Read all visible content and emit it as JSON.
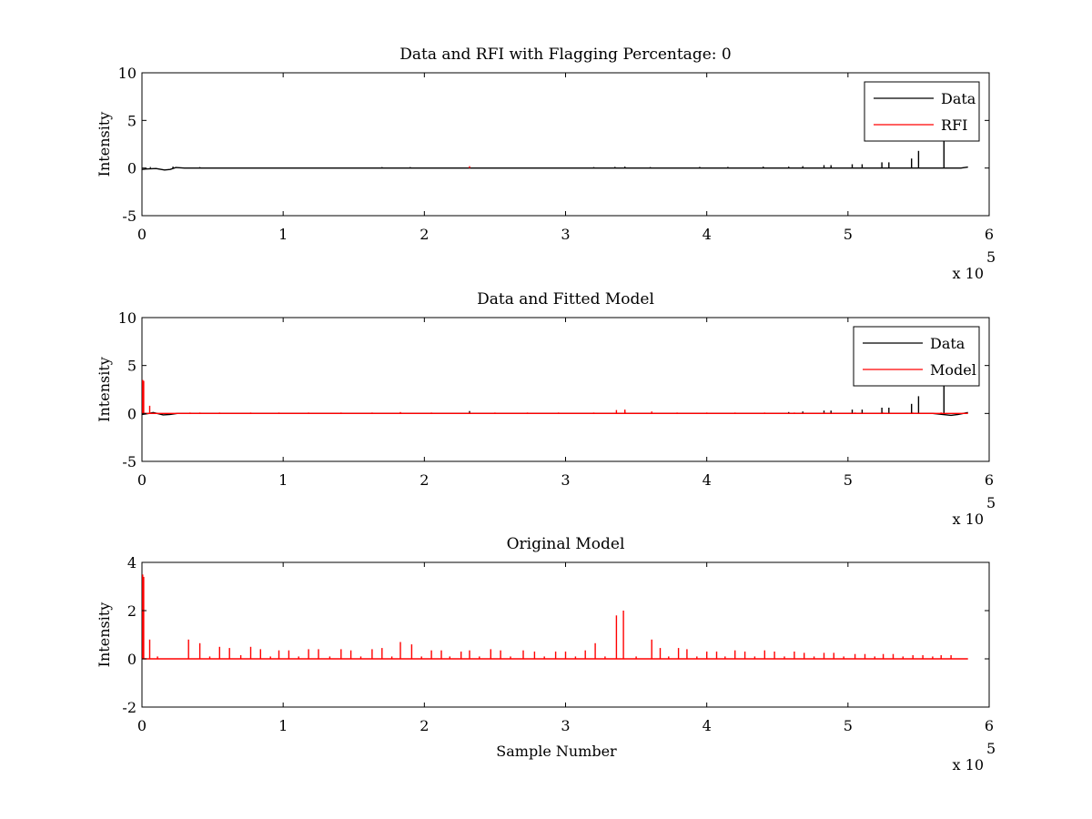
{
  "chart_data": [
    {
      "type": "line",
      "title": "Data and RFI with Flagging Percentage: 0",
      "xlabel": "",
      "ylabel": "Intensity",
      "xlim": [
        0,
        600000
      ],
      "ylim": [
        -5,
        10
      ],
      "xticks": [
        0,
        1,
        2,
        3,
        4,
        5,
        6
      ],
      "yticks": [
        -5,
        0,
        5,
        10
      ],
      "x_exponent_label": "x 10",
      "x_exponent": "5",
      "legend": "top-right",
      "series": [
        {
          "name": "Data",
          "color": "#000000",
          "baseline": [
            [
              0,
              -0.15
            ],
            [
              3000,
              -0.1
            ],
            [
              10000,
              -0.05
            ],
            [
              16000,
              -0.2
            ],
            [
              20000,
              -0.15
            ],
            [
              24000,
              0.05
            ],
            [
              30000,
              0
            ],
            [
              580000,
              0
            ],
            [
              585000,
              0.1
            ]
          ],
          "spikes": [
            [
              6000,
              0.1
            ],
            [
              22000,
              0.15
            ],
            [
              41000,
              0.1
            ],
            [
              170000,
              0.1
            ],
            [
              190000,
              0.1
            ],
            [
              320000,
              0.1
            ],
            [
              335000,
              0.12
            ],
            [
              342000,
              0.15
            ],
            [
              360000,
              0.1
            ],
            [
              395000,
              0.12
            ],
            [
              415000,
              0.12
            ],
            [
              440000,
              0.15
            ],
            [
              458000,
              0.15
            ],
            [
              468000,
              0.2
            ],
            [
              483000,
              0.3
            ],
            [
              488000,
              0.3
            ],
            [
              503000,
              0.4
            ],
            [
              510000,
              0.4
            ],
            [
              524000,
              0.6
            ],
            [
              529000,
              0.6
            ],
            [
              545000,
              1.0
            ],
            [
              550000,
              1.8
            ],
            [
              568000,
              7.0
            ]
          ]
        },
        {
          "name": "RFI",
          "color": "#ff0000",
          "spikes": [
            [
              232000,
              0.2
            ]
          ]
        }
      ]
    },
    {
      "type": "line",
      "title": "Data and Fitted Model",
      "xlabel": "",
      "ylabel": "Intensity",
      "xlim": [
        0,
        600000
      ],
      "ylim": [
        -5,
        10
      ],
      "xticks": [
        0,
        1,
        2,
        3,
        4,
        5,
        6
      ],
      "yticks": [
        -5,
        0,
        5,
        10
      ],
      "x_exponent_label": "x 10",
      "x_exponent": "5",
      "legend": "top-right",
      "series": [
        {
          "name": "Data",
          "color": "#000000",
          "baseline": [
            [
              0,
              -0.1
            ],
            [
              5000,
              0
            ],
            [
              8000,
              0.1
            ],
            [
              15000,
              -0.15
            ],
            [
              20000,
              -0.1
            ],
            [
              25000,
              0
            ],
            [
              560000,
              0
            ],
            [
              573000,
              -0.2
            ],
            [
              578000,
              -0.1
            ],
            [
              585000,
              0.1
            ]
          ],
          "spikes": [
            [
              232000,
              0.25
            ],
            [
              342000,
              0.2
            ],
            [
              458000,
              0.15
            ],
            [
              468000,
              0.2
            ],
            [
              483000,
              0.3
            ],
            [
              488000,
              0.3
            ],
            [
              503000,
              0.4
            ],
            [
              510000,
              0.4
            ],
            [
              524000,
              0.6
            ],
            [
              529000,
              0.6
            ],
            [
              545000,
              1.0
            ],
            [
              550000,
              1.8
            ],
            [
              568000,
              7.0
            ]
          ]
        },
        {
          "name": "Model",
          "color": "#ff0000",
          "baseline": [
            [
              0,
              0
            ],
            [
              585000,
              0
            ]
          ],
          "spikes": [
            [
              500,
              3.5
            ],
            [
              1200,
              3.4
            ],
            [
              5500,
              0.8
            ],
            [
              34000,
              0.1
            ],
            [
              41000,
              0.1
            ],
            [
              55000,
              0.1
            ],
            [
              77000,
              0.1
            ],
            [
              97000,
              0.1
            ],
            [
              118000,
              0.1
            ],
            [
              141000,
              0.1
            ],
            [
              163000,
              0.1
            ],
            [
              183000,
              0.15
            ],
            [
              205000,
              0.1
            ],
            [
              232000,
              0.1
            ],
            [
              250000,
              0.1
            ],
            [
              273000,
              0.1
            ],
            [
              295000,
              0.1
            ],
            [
              320000,
              0.1
            ],
            [
              336000,
              0.35
            ],
            [
              342000,
              0.4
            ],
            [
              361000,
              0.2
            ],
            [
              379000,
              0.1
            ],
            [
              400000,
              0.1
            ],
            [
              420000,
              0.1
            ],
            [
              441000,
              0.1
            ],
            [
              462000,
              0.1
            ],
            [
              483000,
              0.1
            ],
            [
              505000,
              0.1
            ],
            [
              525000,
              0.1
            ],
            [
              546000,
              0.1
            ],
            [
              566000,
              0.1
            ]
          ]
        }
      ]
    },
    {
      "type": "line",
      "title": "Original Model",
      "xlabel": "Sample Number",
      "ylabel": "Intensity",
      "xlim": [
        0,
        600000
      ],
      "ylim": [
        -2,
        4
      ],
      "xticks": [
        0,
        1,
        2,
        3,
        4,
        5,
        6
      ],
      "yticks": [
        -2,
        0,
        2,
        4
      ],
      "x_exponent_label": "x 10",
      "x_exponent": "5",
      "series": [
        {
          "color": "#ff0000",
          "baseline": [
            [
              0,
              0
            ],
            [
              585000,
              0
            ]
          ],
          "spikes": [
            [
              500,
              3.5
            ],
            [
              1200,
              3.4
            ],
            [
              5500,
              0.8
            ],
            [
              11000,
              0.1
            ],
            [
              33000,
              0.8
            ],
            [
              41000,
              0.65
            ],
            [
              48000,
              0.1
            ],
            [
              55000,
              0.5
            ],
            [
              62000,
              0.45
            ],
            [
              70000,
              0.15
            ],
            [
              77000,
              0.5
            ],
            [
              84000,
              0.4
            ],
            [
              91000,
              0.1
            ],
            [
              97000,
              0.35
            ],
            [
              104000,
              0.35
            ],
            [
              111000,
              0.1
            ],
            [
              118000,
              0.4
            ],
            [
              125000,
              0.4
            ],
            [
              133000,
              0.1
            ],
            [
              141000,
              0.4
            ],
            [
              148000,
              0.35
            ],
            [
              155000,
              0.1
            ],
            [
              163000,
              0.4
            ],
            [
              170000,
              0.45
            ],
            [
              177000,
              0.1
            ],
            [
              183000,
              0.7
            ],
            [
              191000,
              0.6
            ],
            [
              198000,
              0.1
            ],
            [
              205000,
              0.35
            ],
            [
              212000,
              0.35
            ],
            [
              218000,
              0.1
            ],
            [
              226000,
              0.3
            ],
            [
              232000,
              0.35
            ],
            [
              239000,
              0.1
            ],
            [
              247000,
              0.4
            ],
            [
              254000,
              0.35
            ],
            [
              261000,
              0.1
            ],
            [
              270000,
              0.35
            ],
            [
              278000,
              0.3
            ],
            [
              285000,
              0.1
            ],
            [
              293000,
              0.3
            ],
            [
              300000,
              0.3
            ],
            [
              307000,
              0.1
            ],
            [
              314000,
              0.35
            ],
            [
              321000,
              0.65
            ],
            [
              328000,
              0.1
            ],
            [
              336000,
              1.8
            ],
            [
              341000,
              2.0
            ],
            [
              350000,
              0.1
            ],
            [
              361000,
              0.8
            ],
            [
              367000,
              0.45
            ],
            [
              373000,
              0.1
            ],
            [
              380000,
              0.45
            ],
            [
              386000,
              0.4
            ],
            [
              393000,
              0.1
            ],
            [
              400000,
              0.3
            ],
            [
              407000,
              0.3
            ],
            [
              413000,
              0.1
            ],
            [
              420000,
              0.35
            ],
            [
              427000,
              0.3
            ],
            [
              434000,
              0.1
            ],
            [
              441000,
              0.35
            ],
            [
              448000,
              0.3
            ],
            [
              455000,
              0.1
            ],
            [
              462000,
              0.3
            ],
            [
              469000,
              0.25
            ],
            [
              476000,
              0.1
            ],
            [
              483000,
              0.25
            ],
            [
              490000,
              0.25
            ],
            [
              497000,
              0.1
            ],
            [
              505000,
              0.2
            ],
            [
              512000,
              0.2
            ],
            [
              519000,
              0.1
            ],
            [
              525000,
              0.2
            ],
            [
              532000,
              0.2
            ],
            [
              539000,
              0.1
            ],
            [
              546000,
              0.15
            ],
            [
              553000,
              0.15
            ],
            [
              560000,
              0.1
            ],
            [
              566000,
              0.15
            ],
            [
              573000,
              0.15
            ]
          ]
        }
      ]
    }
  ]
}
